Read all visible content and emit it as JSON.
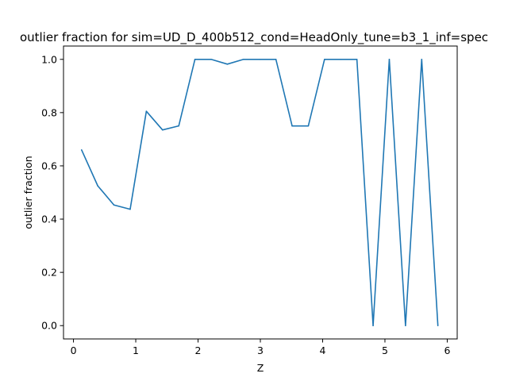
{
  "chart_data": {
    "type": "line",
    "title": "outlier fraction for sim=UD_D_400b512_cond=HeadOnly_tune=b3_1_inf=spec",
    "xlabel": "Z",
    "ylabel": "outlier fraction",
    "xlim": [
      -0.16,
      6.16
    ],
    "ylim": [
      -0.05,
      1.05
    ],
    "xticks": [
      0,
      1,
      2,
      3,
      4,
      5,
      6
    ],
    "yticks": [
      0.0,
      0.2,
      0.4,
      0.6,
      0.8,
      1.0
    ],
    "xtick_labels": [
      "0",
      "1",
      "2",
      "3",
      "4",
      "5",
      "6"
    ],
    "ytick_labels": [
      "0.0",
      "0.2",
      "0.4",
      "0.6",
      "0.8",
      "1.0"
    ],
    "grid": false,
    "series": [
      {
        "color": "#1f77b4",
        "x": [
          0.13,
          0.39,
          0.65,
          0.91,
          1.17,
          1.43,
          1.69,
          1.95,
          2.21,
          2.47,
          2.73,
          2.99,
          3.25,
          3.51,
          3.77,
          4.03,
          4.29,
          4.55,
          4.81,
          5.07,
          5.33,
          5.59,
          5.85
        ],
        "y": [
          0.66,
          0.525,
          0.453,
          0.437,
          0.805,
          0.735,
          0.75,
          1.0,
          1.0,
          0.982,
          1.0,
          1.0,
          1.0,
          0.75,
          0.75,
          1.0,
          1.0,
          1.0,
          0.0,
          1.0,
          0.0,
          1.0,
          0.0
        ]
      }
    ]
  }
}
